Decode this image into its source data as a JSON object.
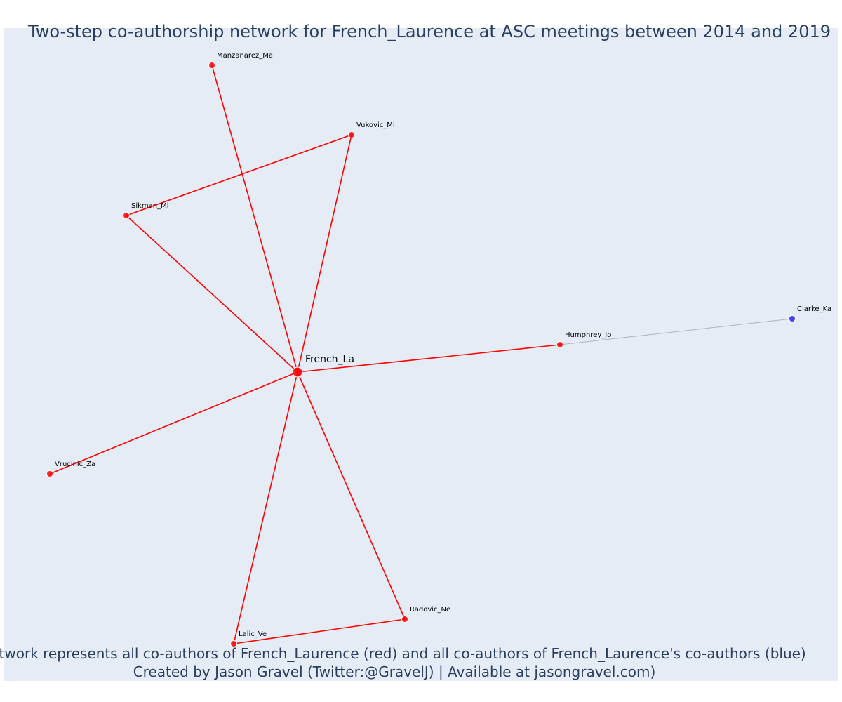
{
  "title": "Two-step co-authorship network for French_Laurence at ASC meetings between 2014 and 2019",
  "caption_line1": "Network represents all co-authors of French_Laurence (red) and all co-authors of French_Laurence's co-authors (blue)",
  "caption_line2": "Created by Jason Gravel (Twitter:@GravelJ) | Available at jasongravel.com)",
  "colors": {
    "plot_background": "#e5ecf6",
    "first_degree": "#ff0000",
    "second_degree": "#3333ee",
    "second_degree_edge": "#b0b0c8",
    "text": "#2a3f5f"
  },
  "network": {
    "center": "French_La",
    "nodes": [
      {
        "id": "French_La",
        "label": "French_La",
        "group": "center"
      },
      {
        "id": "Manzanarez_Ma",
        "label": "Manzanarez_Ma",
        "group": "coauthor"
      },
      {
        "id": "Vukovic_Mi",
        "label": "Vukovic_Mi",
        "group": "coauthor"
      },
      {
        "id": "Sikman_Mi",
        "label": "Sikman_Mi",
        "group": "coauthor"
      },
      {
        "id": "Humphrey_Jo",
        "label": "Humphrey_Jo",
        "group": "coauthor"
      },
      {
        "id": "Vrucinic_Za",
        "label": "Vrucinic_Za",
        "group": "coauthor"
      },
      {
        "id": "Lalic_Ve",
        "label": "Lalic_Ve",
        "group": "coauthor"
      },
      {
        "id": "Radovic_Ne",
        "label": "Radovic_Ne",
        "group": "coauthor"
      },
      {
        "id": "Clarke_Ka",
        "label": "Clarke_Ka",
        "group": "second"
      }
    ],
    "edges": [
      {
        "source": "French_La",
        "target": "Manzanarez_Ma",
        "type": "first"
      },
      {
        "source": "French_La",
        "target": "Vukovic_Mi",
        "type": "first"
      },
      {
        "source": "French_La",
        "target": "Sikman_Mi",
        "type": "first"
      },
      {
        "source": "French_La",
        "target": "Humphrey_Jo",
        "type": "first"
      },
      {
        "source": "French_La",
        "target": "Vrucinic_Za",
        "type": "first"
      },
      {
        "source": "French_La",
        "target": "Lalic_Ve",
        "type": "first"
      },
      {
        "source": "French_La",
        "target": "Radovic_Ne",
        "type": "first"
      },
      {
        "source": "Sikman_Mi",
        "target": "Vukovic_Mi",
        "type": "first"
      },
      {
        "source": "Lalic_Ve",
        "target": "Radovic_Ne",
        "type": "first"
      },
      {
        "source": "Humphrey_Jo",
        "target": "Clarke_Ka",
        "type": "second"
      }
    ]
  }
}
